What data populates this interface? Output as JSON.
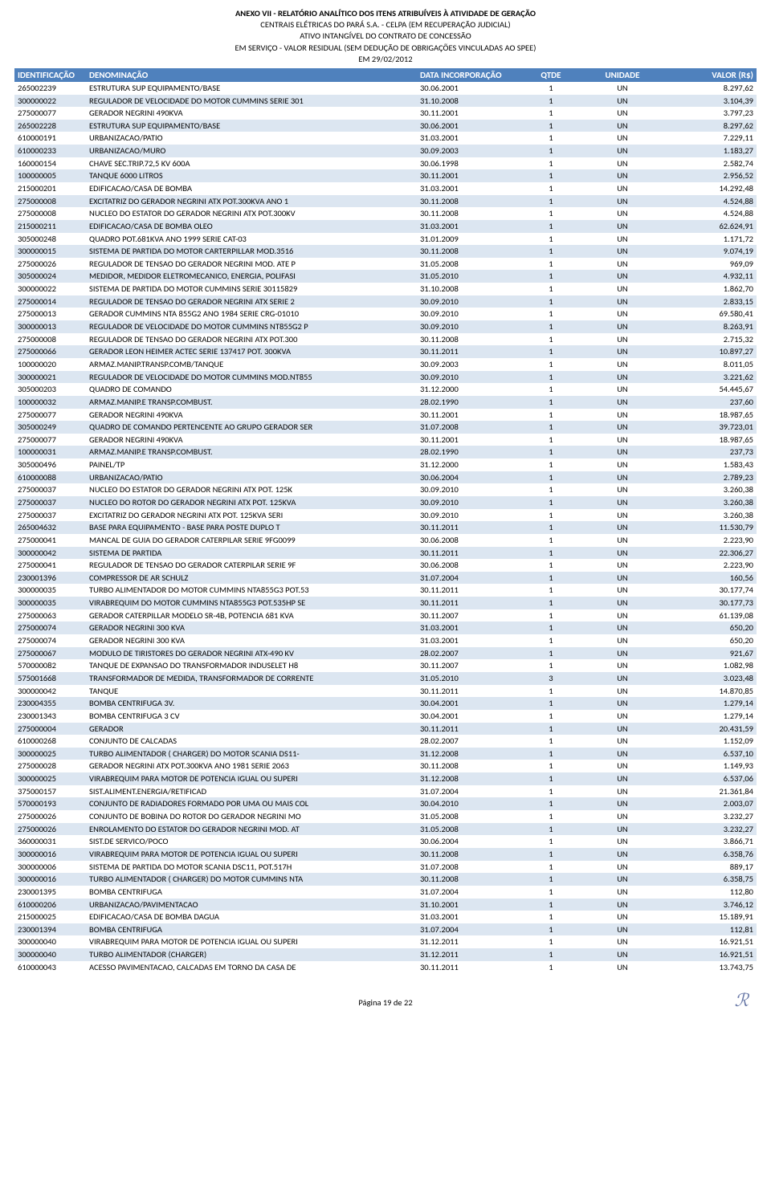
{
  "header": {
    "lines": [
      "ANEXO VII - RELATÓRIO ANALÍTICO DOS ITENS ATRIBUÍVEIS À ATIVIDADE DE GERAÇÃO",
      "CENTRAIS ELÉTRICAS DO PARÁ S.A. - CELPA (EM RECUPERAÇÃO JUDICIAL)",
      "ATIVO INTANGÍVEL DO CONTRATO DE CONCESSÃO",
      "EM SERVIÇO - VALOR RESIDUAL (SEM DEDUÇÃO DE OBRIGAÇÕES VINCULADAS AO SPEE)",
      "EM 29/02/2012"
    ]
  },
  "table": {
    "columns": [
      "IDENTIFICAÇÃO",
      "DENOMINAÇÃO",
      "DATA INCORPORAÇÃO",
      "QTDE",
      "UNIDADE",
      "VALOR (R$)"
    ],
    "header_bg": "#4f81bd",
    "header_fg": "#ffffff",
    "alt_bg": "#dce6f1",
    "col_align": [
      "left",
      "left",
      "left",
      "center",
      "center",
      "right"
    ],
    "rows": [
      [
        "265002239",
        "ESTRUTURA SUP EQUIPAMENTO/BASE",
        "30.06.2001",
        "1",
        "UN",
        "8.297,62"
      ],
      [
        "300000022",
        "REGULADOR DE VELOCIDADE DO MOTOR CUMMINS SERIE 301",
        "31.10.2008",
        "1",
        "UN",
        "3.104,39"
      ],
      [
        "275000077",
        "GERADOR NEGRINI 490KVA",
        "30.11.2001",
        "1",
        "UN",
        "3.797,23"
      ],
      [
        "265002228",
        "ESTRUTURA SUP EQUIPAMENTO/BASE",
        "30.06.2001",
        "1",
        "UN",
        "8.297,62"
      ],
      [
        "610000191",
        "URBANIZACAO/PATIO",
        "31.03.2001",
        "1",
        "UN",
        "7.229,11"
      ],
      [
        "610000233",
        "URBANIZACAO/MURO",
        "30.09.2003",
        "1",
        "UN",
        "1.183,27"
      ],
      [
        "160000154",
        "CHAVE SEC.TRIP.72,5 KV 600A",
        "30.06.1998",
        "1",
        "UN",
        "2.582,74"
      ],
      [
        "100000005",
        "TANQUE 6000 LITROS",
        "30.11.2001",
        "1",
        "UN",
        "2.956,52"
      ],
      [
        "215000201",
        "EDIFICACAO/CASA DE BOMBA",
        "31.03.2001",
        "1",
        "UN",
        "14.292,48"
      ],
      [
        "275000008",
        "EXCITATRIZ DO GERADOR NEGRINI ATX POT.300KVA ANO 1",
        "30.11.2008",
        "1",
        "UN",
        "4.524,88"
      ],
      [
        "275000008",
        "NUCLEO DO ESTATOR DO GERADOR NEGRINI ATX POT.300KV",
        "30.11.2008",
        "1",
        "UN",
        "4.524,88"
      ],
      [
        "215000211",
        "EDIFICACAO/CASA DE BOMBA OLEO",
        "31.03.2001",
        "1",
        "UN",
        "62.624,91"
      ],
      [
        "305000248",
        "QUADRO POT.681KVA ANO 1999 SERIE CAT-03",
        "31.01.2009",
        "1",
        "UN",
        "1.171,72"
      ],
      [
        "300000015",
        "SISTEMA DE PARTIDA DO MOTOR CARTERPILLAR MOD.3516",
        "30.11.2008",
        "1",
        "UN",
        "9.074,19"
      ],
      [
        "275000026",
        "REGULADOR DE TENSAO  DO GERADOR NEGRINI MOD. ATE P",
        "31.05.2008",
        "1",
        "UN",
        "969,09"
      ],
      [
        "305000024",
        "MEDIDOR, MEDIDOR ELETROMECANICO, ENERGIA, POLIFASI",
        "31.05.2010",
        "1",
        "UN",
        "4.932,11"
      ],
      [
        "300000022",
        "SISTEMA DE PARTIDA DO MOTOR CUMMINS SERIE 30115829",
        "31.10.2008",
        "1",
        "UN",
        "1.862,70"
      ],
      [
        "275000014",
        "REGULADOR DE TENSAO DO GERADOR NEGRINI ATX SERIE 2",
        "30.09.2010",
        "1",
        "UN",
        "2.833,15"
      ],
      [
        "275000013",
        "GERADOR CUMMINS NTA 855G2 ANO 1984 SERIE CRG-01010",
        "30.09.2010",
        "1",
        "UN",
        "69.580,41"
      ],
      [
        "300000013",
        "REGULADOR DE VELOCIDADE DO MOTOR CUMMINS NT855G2 P",
        "30.09.2010",
        "1",
        "UN",
        "8.263,91"
      ],
      [
        "275000008",
        "REGULADOR DE TENSAO DO GERADOR NEGRINI ATX POT.300",
        "30.11.2008",
        "1",
        "UN",
        "2.715,32"
      ],
      [
        "275000066",
        "GERADOR LEON HEIMER ACTEC SERIE 137417 POT. 300KVA",
        "30.11.2011",
        "1",
        "UN",
        "10.897,27"
      ],
      [
        "100000020",
        "ARMAZ.MANIP.TRANSP.COMB/TANQUE",
        "30.09.2003",
        "1",
        "UN",
        "8.011,05"
      ],
      [
        "300000021",
        "REGULADOR DE VELOCIDADE DO MOTOR CUMMINS MOD.NT855",
        "30.09.2010",
        "1",
        "UN",
        "3.221,62"
      ],
      [
        "305000203",
        "QUADRO DE COMANDO",
        "31.12.2000",
        "1",
        "UN",
        "54.445,67"
      ],
      [
        "100000032",
        "ARMAZ.MANIP.E TRANSP.COMBUST.",
        "28.02.1990",
        "1",
        "UN",
        "237,60"
      ],
      [
        "275000077",
        "GERADOR NEGRINI 490KVA",
        "30.11.2001",
        "1",
        "UN",
        "18.987,65"
      ],
      [
        "305000249",
        "QUADRO DE COMANDO PERTENCENTE AO GRUPO GERADOR SER",
        "31.07.2008",
        "1",
        "UN",
        "39.723,01"
      ],
      [
        "275000077",
        "GERADOR NEGRINI 490KVA",
        "30.11.2001",
        "1",
        "UN",
        "18.987,65"
      ],
      [
        "100000031",
        "ARMAZ.MANIP.E TRANSP.COMBUST.",
        "28.02.1990",
        "1",
        "UN",
        "237,73"
      ],
      [
        "305000496",
        "PAINEL/TP",
        "31.12.2000",
        "1",
        "UN",
        "1.583,43"
      ],
      [
        "610000088",
        "URBANIZACAO/PATIO",
        "30.06.2004",
        "1",
        "UN",
        "2.789,23"
      ],
      [
        "275000037",
        "NUCLEO DO ESTATOR DO GERADOR NEGRINI ATX POT. 125K",
        "30.09.2010",
        "1",
        "UN",
        "3.260,38"
      ],
      [
        "275000037",
        "NUCLEO DO ROTOR DO GERADOR NEGRINI ATX POT. 125KVA",
        "30.09.2010",
        "1",
        "UN",
        "3.260,38"
      ],
      [
        "275000037",
        "EXCITATRIZ DO GERADOR NEGRINI ATX POT. 125KVA SERI",
        "30.09.2010",
        "1",
        "UN",
        "3.260,38"
      ],
      [
        "265004632",
        "BASE PARA EQUIPAMENTO - BASE PARA POSTE DUPLO T",
        "30.11.2011",
        "1",
        "UN",
        "11.530,79"
      ],
      [
        "275000041",
        "MANCAL DE GUIA DO GERADOR CATERPILAR SERIE 9FG0099",
        "30.06.2008",
        "1",
        "UN",
        "2.223,90"
      ],
      [
        "300000042",
        "SISTEMA DE PARTIDA",
        "30.11.2011",
        "1",
        "UN",
        "22.306,27"
      ],
      [
        "275000041",
        "REGULADOR DE TENSAO DO GERADOR CATERPILAR SERIE 9F",
        "30.06.2008",
        "1",
        "UN",
        "2.223,90"
      ],
      [
        "230001396",
        "COMPRESSOR DE AR SCHULZ",
        "31.07.2004",
        "1",
        "UN",
        "160,56"
      ],
      [
        "300000035",
        "TURBO ALIMENTADOR DO MOTOR CUMMINS NTA855G3 POT.53",
        "30.11.2011",
        "1",
        "UN",
        "30.177,74"
      ],
      [
        "300000035",
        "VIRABREQUIM DO MOTOR CUMMINS NTA855G3 POT.535HP SE",
        "30.11.2011",
        "1",
        "UN",
        "30.177,73"
      ],
      [
        "275000063",
        "GERADOR CATERPILLAR MODELO SR-4B, POTENCIA 681 KVA",
        "30.11.2007",
        "1",
        "UN",
        "61.139,08"
      ],
      [
        "275000074",
        "GERADOR NEGRINI 300 KVA",
        "31.03.2001",
        "1",
        "UN",
        "650,20"
      ],
      [
        "275000074",
        "GERADOR NEGRINI 300 KVA",
        "31.03.2001",
        "1",
        "UN",
        "650,20"
      ],
      [
        "275000067",
        "MODULO DE TIRISTORES DO GERADOR NEGRINI ATX-490 KV",
        "28.02.2007",
        "1",
        "UN",
        "921,67"
      ],
      [
        "570000082",
        "TANQUE DE EXPANSAO  DO TRANSFORMADOR INDUSELET H8",
        "30.11.2007",
        "1",
        "UN",
        "1.082,98"
      ],
      [
        "575001668",
        "TRANSFORMADOR DE MEDIDA, TRANSFORMADOR DE CORRENTE",
        "31.05.2010",
        "3",
        "UN",
        "3.023,48"
      ],
      [
        "300000042",
        "TANQUE",
        "30.11.2011",
        "1",
        "UN",
        "14.870,85"
      ],
      [
        "230004355",
        "BOMBA CENTRIFUGA 3V.",
        "30.04.2001",
        "1",
        "UN",
        "1.279,14"
      ],
      [
        "230001343",
        "BOMBA CENTRIFUGA 3 CV",
        "30.04.2001",
        "1",
        "UN",
        "1.279,14"
      ],
      [
        "275000004",
        "GERADOR",
        "30.11.2011",
        "1",
        "UN",
        "20.431,59"
      ],
      [
        "610000268",
        "CONJUNTO  DE CALCADAS",
        "28.02.2007",
        "1",
        "UN",
        "1.152,09"
      ],
      [
        "300000025",
        "TURBO ALIMENTADOR ( CHARGER) DO MOTOR SCANIA DS11-",
        "31.12.2008",
        "1",
        "UN",
        "6.537,10"
      ],
      [
        "275000028",
        "GERADOR NEGRINI ATX POT.300KVA ANO 1981 SERIE 2063",
        "30.11.2008",
        "1",
        "UN",
        "1.149,93"
      ],
      [
        "300000025",
        "VIRABREQUIM PARA MOTOR DE POTENCIA IGUAL OU SUPERI",
        "31.12.2008",
        "1",
        "UN",
        "6.537,06"
      ],
      [
        "375000157",
        "SIST.ALIMENT.ENERGIA/RETIFICAD",
        "31.07.2004",
        "1",
        "UN",
        "21.361,84"
      ],
      [
        "570000193",
        "CONJUNTO DE RADIADORES FORMADO POR UMA OU MAIS COL",
        "30.04.2010",
        "1",
        "UN",
        "2.003,07"
      ],
      [
        "275000026",
        "CONJUNTO DE BOBINA DO ROTOR  DO GERADOR NEGRINI MO",
        "31.05.2008",
        "1",
        "UN",
        "3.232,27"
      ],
      [
        "275000026",
        "ENROLAMENTO DO ESTATOR  DO GERADOR NEGRINI MOD. AT",
        "31.05.2008",
        "1",
        "UN",
        "3.232,27"
      ],
      [
        "360000031",
        "SIST.DE SERVICO/POCO",
        "30.06.2004",
        "1",
        "UN",
        "3.866,71"
      ],
      [
        "300000016",
        "VIRABREQUIM PARA MOTOR DE POTENCIA IGUAL OU SUPERI",
        "30.11.2008",
        "1",
        "UN",
        "6.358,76"
      ],
      [
        "300000006",
        "SISTEMA DE PARTIDA DO MOTOR SCANIA DSC11, POT.517H",
        "31.07.2008",
        "1",
        "UN",
        "889,17"
      ],
      [
        "300000016",
        "TURBO ALIMENTADOR ( CHARGER) DO MOTOR CUMMINS NTA",
        "30.11.2008",
        "1",
        "UN",
        "6.358,75"
      ],
      [
        "230001395",
        "BOMBA CENTRIFUGA",
        "31.07.2004",
        "1",
        "UN",
        "112,80"
      ],
      [
        "610000206",
        "URBANIZACAO/PAVIMENTACAO",
        "31.10.2001",
        "1",
        "UN",
        "3.746,12"
      ],
      [
        "215000025",
        "EDIFICACAO/CASA DE BOMBA DAGUA",
        "31.03.2001",
        "1",
        "UN",
        "15.189,91"
      ],
      [
        "230001394",
        "BOMBA CENTRIFUGA",
        "31.07.2004",
        "1",
        "UN",
        "112,81"
      ],
      [
        "300000040",
        "VIRABREQUIM PARA MOTOR DE POTENCIA IGUAL OU SUPERI",
        "31.12.2011",
        "1",
        "UN",
        "16.921,51"
      ],
      [
        "300000040",
        "TURBO ALIMENTADOR (CHARGER)",
        "31.12.2011",
        "1",
        "UN",
        "16.921,51"
      ],
      [
        "610000043",
        "ACESSO PAVIMENTACAO, CALCADAS EM TORNO DA CASA DE",
        "30.11.2011",
        "1",
        "UN",
        "13.743,75"
      ]
    ]
  },
  "footer": {
    "page": "Página 19 de 22"
  }
}
